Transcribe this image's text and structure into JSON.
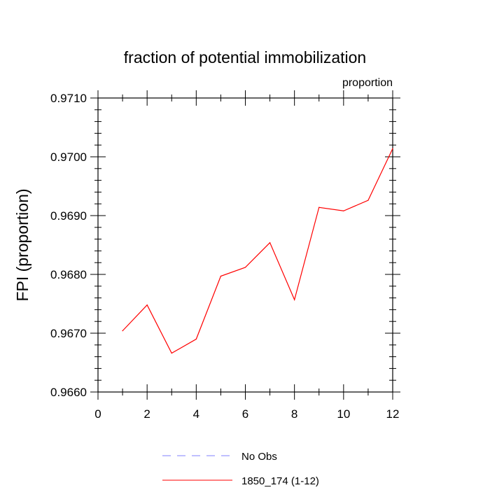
{
  "chart_data": {
    "type": "line",
    "title": "fraction of potential immobilization",
    "units_label": "proportion",
    "xlabel": "",
    "ylabel": "FPI  (proportion)",
    "xlim": [
      0,
      12
    ],
    "ylim": [
      0.966,
      0.971
    ],
    "x_ticks": [
      0,
      2,
      4,
      6,
      8,
      10,
      12
    ],
    "x_tick_labels": [
      "0",
      "2",
      "4",
      "6",
      "8",
      "10",
      "12"
    ],
    "y_ticks": [
      0.966,
      0.967,
      0.968,
      0.969,
      0.97,
      0.971
    ],
    "y_tick_labels": [
      "0.9660",
      "0.9670",
      "0.9680",
      "0.9690",
      "0.9700",
      "0.9710"
    ],
    "grid": false,
    "legend_position": "bottom",
    "series": [
      {
        "name": "No Obs",
        "color": "#8080ff",
        "dashed": true,
        "x": [],
        "values": []
      },
      {
        "name": "1850_174 (1-12)",
        "color": "#ff0000",
        "dashed": false,
        "x": [
          1,
          2,
          3,
          4,
          5,
          6,
          7,
          8,
          9,
          10,
          11,
          12
        ],
        "values": [
          0.96704,
          0.96748,
          0.96666,
          0.9669,
          0.96797,
          0.96812,
          0.96854,
          0.96757,
          0.96914,
          0.96908,
          0.96926,
          0.97014
        ]
      }
    ]
  }
}
